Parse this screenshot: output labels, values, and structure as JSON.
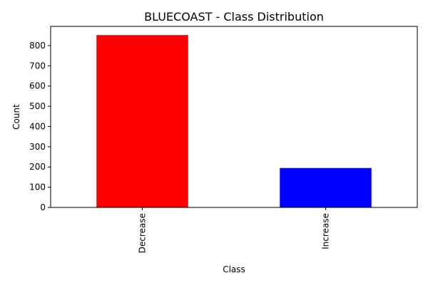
{
  "chart_data": {
    "type": "bar",
    "title": "BLUECOAST - Class Distribution",
    "xlabel": "Class",
    "ylabel": "Count",
    "categories": [
      "Decrease",
      "Increase"
    ],
    "values": [
      852,
      195
    ],
    "colors": [
      "#ff0000",
      "#0000ff"
    ],
    "ylim": [
      0,
      895
    ],
    "yticks": [
      0,
      100,
      200,
      300,
      400,
      500,
      600,
      700,
      800
    ],
    "grid": false,
    "legend": "none"
  }
}
